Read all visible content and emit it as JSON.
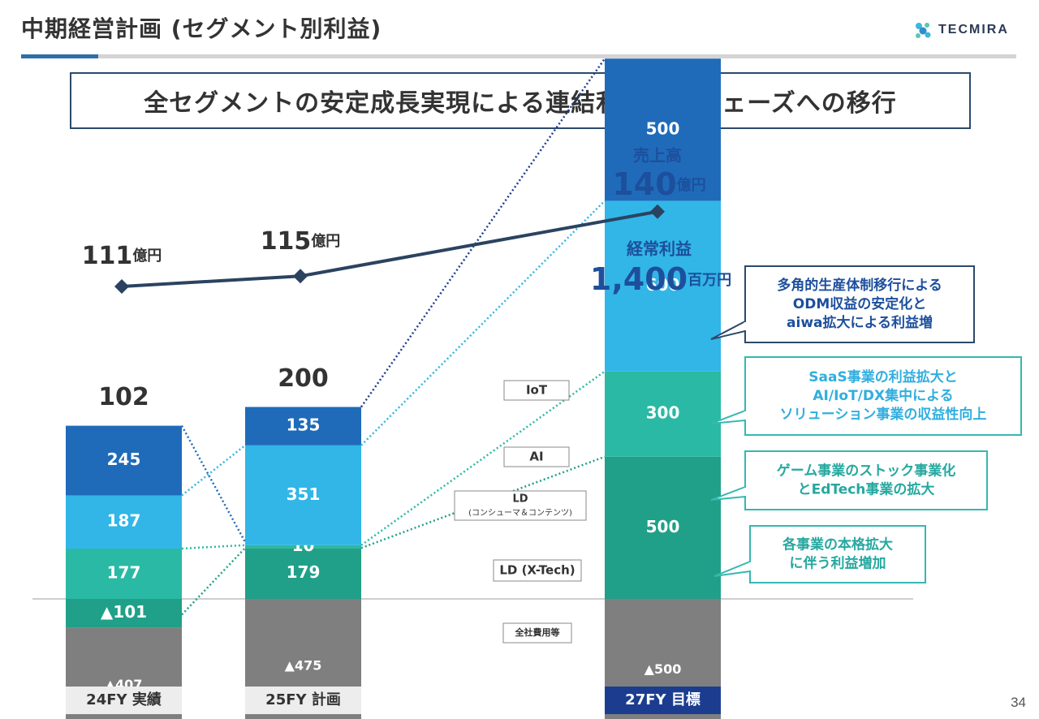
{
  "header": {
    "title": "中期経営計画 (セグメント別利益)",
    "logo_text": "TECMIRA",
    "headline": "全セグメントの安定成長実現による連結利益拡大フェーズへの移行"
  },
  "page_number": "34",
  "colors": {
    "iot": "#1f6bba",
    "ai": "#31b6e7",
    "ld_consumer": "#2ab9a4",
    "ld_xtech": "#20a088",
    "corporate": "#7f7f7f",
    "sales_line": "#2b4360",
    "dark_navy": "#1c3d8f",
    "blue_text": "#1d4f9c",
    "teal_text": "#25a8a0",
    "callout_navy": "#2b4a6b",
    "callout_teal": "#35b8b0"
  },
  "chart_data": {
    "type": "bar",
    "stacked": true,
    "categories": [
      "24FY 実績",
      "25FY 計画",
      "27FY 目標"
    ],
    "series": [
      {
        "name": "LD (X-Tech)",
        "values": [
          -101,
          179,
          500
        ],
        "labels": [
          "▲101",
          "179",
          "500"
        ]
      },
      {
        "name": "LD\n(コンシューマ＆コンテンツ)",
        "values": [
          177,
          10,
          300
        ],
        "labels": [
          "177",
          "10",
          "300"
        ]
      },
      {
        "name": "AI",
        "values": [
          187,
          351,
          600
        ],
        "labels": [
          "187",
          "351",
          "600"
        ]
      },
      {
        "name": "IoT",
        "values": [
          245,
          135,
          500
        ],
        "labels": [
          "245",
          "135",
          "500"
        ]
      },
      {
        "name": "全社費用等",
        "values": [
          -407,
          -475,
          -500
        ],
        "labels": [
          "▲407",
          "▲475",
          "▲500"
        ]
      }
    ],
    "totals": [
      "102",
      "200",
      ""
    ],
    "ordinary_profit_label": "経常利益",
    "ordinary_profit_value": "1,400",
    "ordinary_profit_unit": "百万円",
    "sales_line": {
      "label": "売上高",
      "values": [
        111,
        115,
        140
      ],
      "value_labels": [
        "111",
        "115",
        "140"
      ],
      "unit": "億円"
    },
    "callouts": [
      {
        "series": "IoT",
        "lines": [
          "多角的生産体制移行による",
          "ODM収益の安定化と",
          "aiwa拡大による利益増"
        ]
      },
      {
        "series": "AI",
        "lines": [
          "SaaS事業の利益拡大と",
          "AI/IoT/DX集中による",
          "ソリューション事業の収益性向上"
        ]
      },
      {
        "series": "LD\n(コンシューマ＆コンテンツ)",
        "lines": [
          "ゲーム事業のストック事業化",
          "とEdTech事業の拡大"
        ]
      },
      {
        "series": "LD (X-Tech)",
        "lines": [
          "各事業の本格拡大",
          "に伴う利益増加"
        ]
      }
    ],
    "legend_placement": "center-right"
  }
}
